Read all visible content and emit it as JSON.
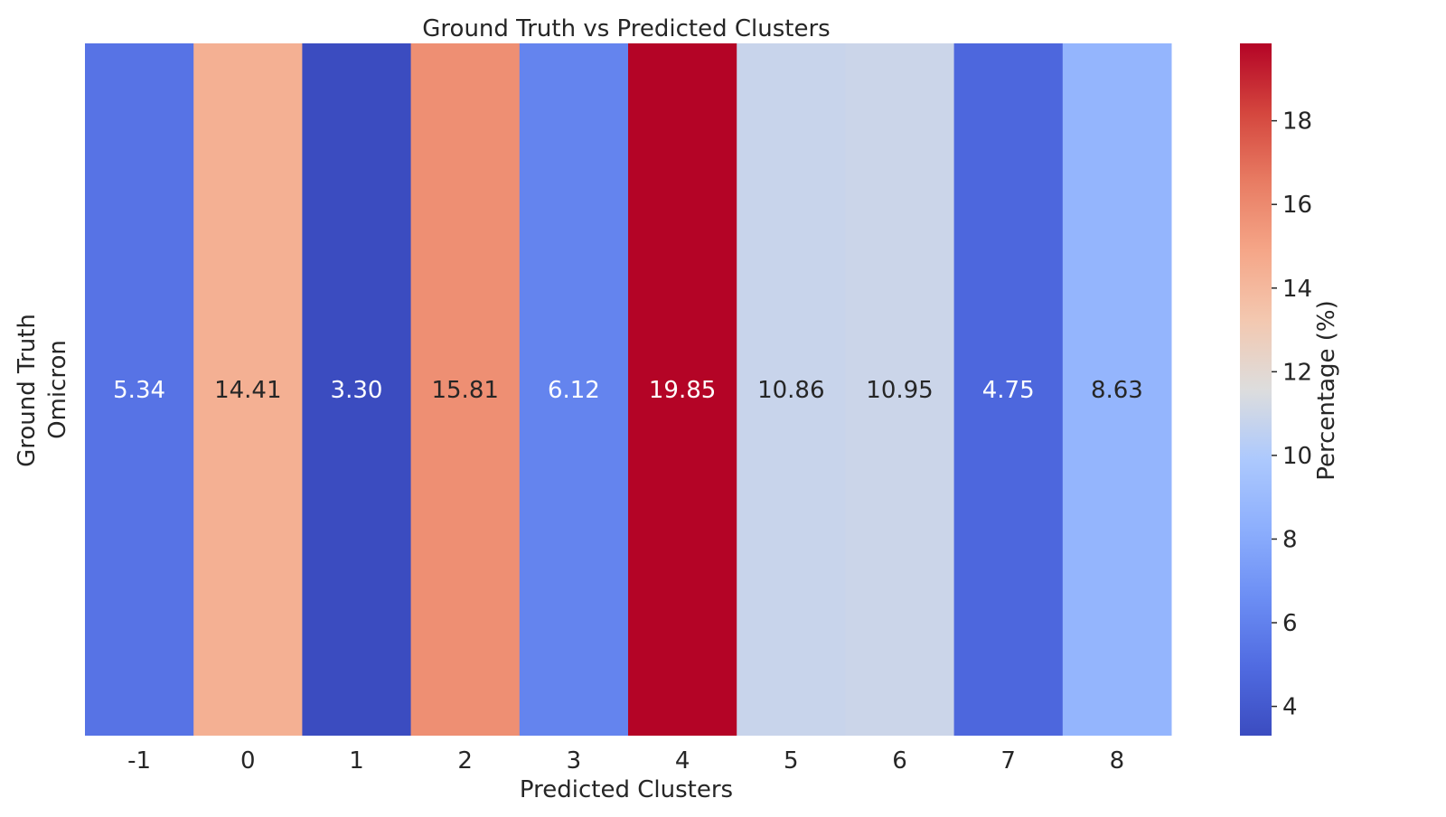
{
  "chart_data": {
    "type": "heatmap",
    "title": "Ground Truth vs Predicted Clusters",
    "xlabel": "Predicted Clusters",
    "ylabel": "Ground Truth",
    "x_categories": [
      "-1",
      "0",
      "1",
      "2",
      "3",
      "4",
      "5",
      "6",
      "7",
      "8"
    ],
    "y_categories": [
      "Omicron"
    ],
    "values": [
      [
        5.34,
        14.41,
        3.3,
        15.81,
        6.12,
        19.85,
        10.86,
        10.95,
        4.75,
        8.63
      ]
    ],
    "value_labels": [
      [
        "5.34",
        "14.41",
        "3.30",
        "15.81",
        "6.12",
        "19.85",
        "10.86",
        "10.95",
        "4.75",
        "8.63"
      ]
    ],
    "colormap": "coolwarm",
    "colorbar": {
      "label": "Percentage (%)",
      "range": [
        3.3,
        19.85
      ],
      "ticks": [
        4,
        6,
        8,
        10,
        12,
        14,
        16,
        18
      ],
      "tick_labels": [
        "4",
        "6",
        "8",
        "10",
        "12",
        "14",
        "16",
        "18"
      ]
    },
    "colors": {
      "text_dark": "#262626",
      "text_light": "#ffffff"
    }
  }
}
